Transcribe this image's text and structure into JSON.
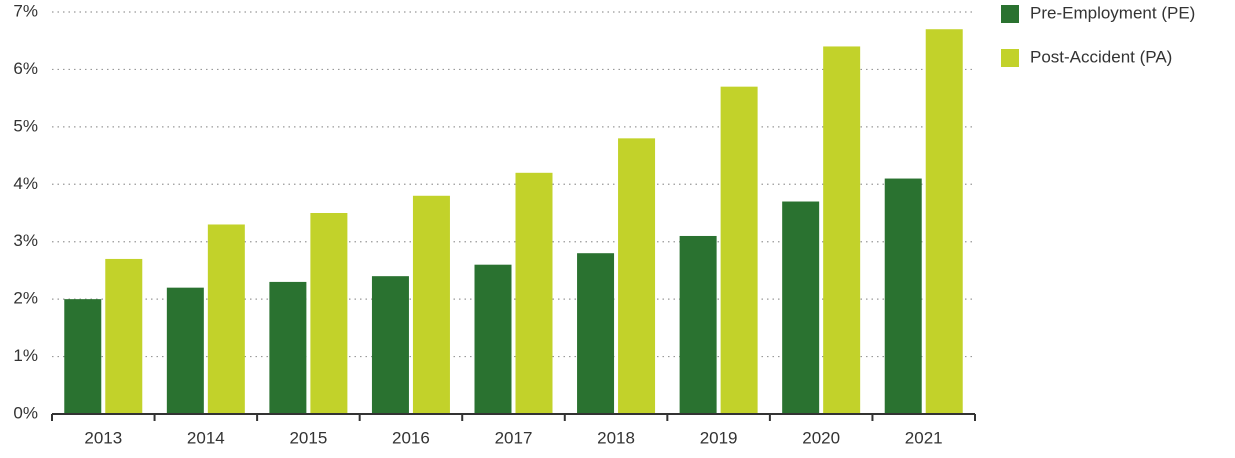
{
  "chart_data": {
    "type": "bar",
    "categories": [
      "2013",
      "2014",
      "2015",
      "2016",
      "2017",
      "2018",
      "2019",
      "2020",
      "2021"
    ],
    "series": [
      {
        "name": "Pre-Employment (PE)",
        "color": "#2a7230",
        "values": [
          2.0,
          2.2,
          2.3,
          2.4,
          2.6,
          2.8,
          3.1,
          3.7,
          4.1
        ]
      },
      {
        "name": "Post-Accident (PA)",
        "color": "#c2d22a",
        "values": [
          2.7,
          3.3,
          3.5,
          3.8,
          4.2,
          4.8,
          5.7,
          6.4,
          6.7
        ]
      }
    ],
    "ylim": [
      0,
      7
    ],
    "yticks": [
      {
        "value": 0,
        "label": "0%"
      },
      {
        "value": 1,
        "label": "1%"
      },
      {
        "value": 2,
        "label": "2%"
      },
      {
        "value": 3,
        "label": "3%"
      },
      {
        "value": 4,
        "label": "4%"
      },
      {
        "value": 5,
        "label": "5%"
      },
      {
        "value": 6,
        "label": "6%"
      },
      {
        "value": 7,
        "label": "7%"
      }
    ],
    "grid": true,
    "legend": "top-right"
  }
}
